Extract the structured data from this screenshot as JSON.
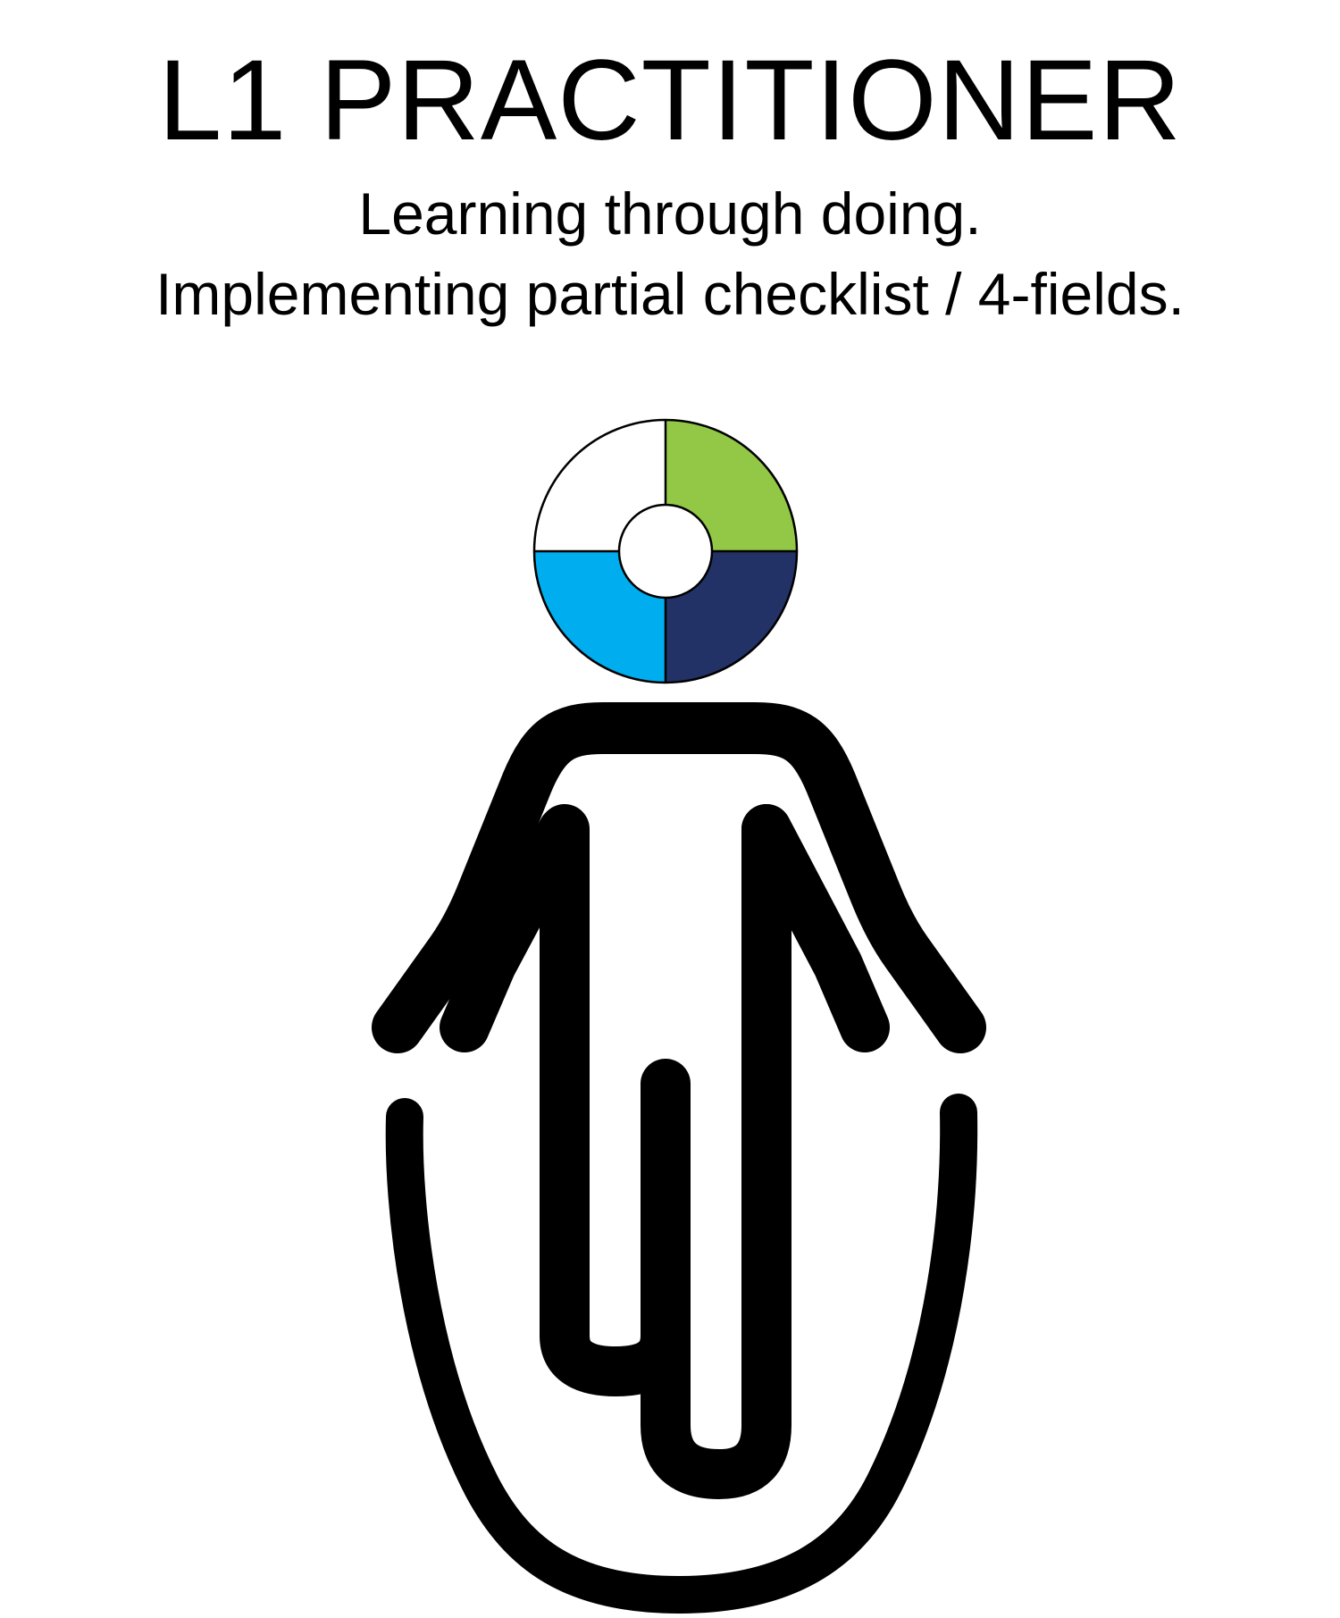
{
  "header": {
    "title": "L1 PRACTITIONER",
    "subtitle_line1": "Learning through doing.",
    "subtitle_line2": "Implementing partial checklist / 4-fields."
  },
  "emblem": {
    "icon": "quadrant-ring-icon",
    "quadrants": [
      {
        "position": "top-left",
        "color": "#ffffff"
      },
      {
        "position": "top-right",
        "color": "#92c846"
      },
      {
        "position": "bottom-right",
        "color": "#223266"
      },
      {
        "position": "bottom-left",
        "color": "#00aeef"
      }
    ]
  },
  "figure": {
    "icon": "person-jump-rope-icon",
    "stroke_color": "#000000"
  }
}
